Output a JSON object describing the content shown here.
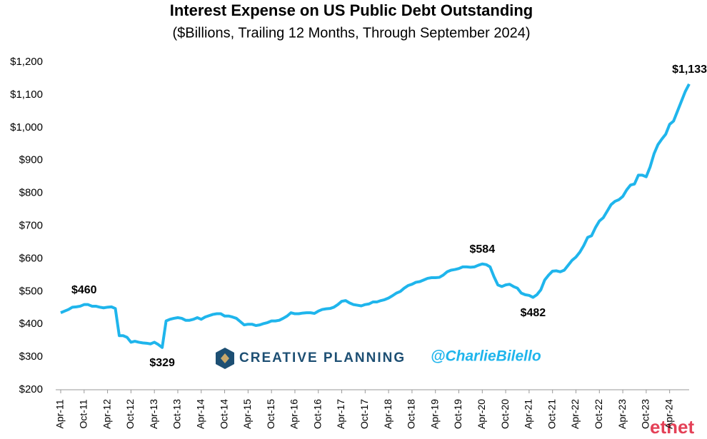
{
  "chart_data": {
    "type": "line",
    "title": "Interest Expense on US Public Debt Outstanding",
    "subtitle": "($Billions, Trailing 12 Months, Through September 2024)",
    "brand": "CREATIVE PLANNING",
    "handle": "@CharlieBilello",
    "watermark": "etnet",
    "categories": [
      "Apr-11",
      null,
      null,
      null,
      null,
      null,
      "Oct-11",
      null,
      null,
      null,
      null,
      null,
      "Apr-12",
      null,
      null,
      null,
      null,
      null,
      "Oct-12",
      null,
      null,
      null,
      null,
      null,
      "Apr-13",
      null,
      null,
      null,
      null,
      null,
      "Oct-13",
      null,
      null,
      null,
      null,
      null,
      "Apr-14",
      null,
      null,
      null,
      null,
      null,
      "Oct-14",
      null,
      null,
      null,
      null,
      null,
      "Apr-15",
      null,
      null,
      null,
      null,
      null,
      "Oct-15",
      null,
      null,
      null,
      null,
      null,
      "Apr-16",
      null,
      null,
      null,
      null,
      null,
      "Oct-16",
      null,
      null,
      null,
      null,
      null,
      "Apr-17",
      null,
      null,
      null,
      null,
      null,
      "Oct-17",
      null,
      null,
      null,
      null,
      null,
      "Apr-18",
      null,
      null,
      null,
      null,
      null,
      "Oct-18",
      null,
      null,
      null,
      null,
      null,
      "Apr-19",
      null,
      null,
      null,
      null,
      null,
      "Oct-19",
      null,
      null,
      null,
      null,
      null,
      "Apr-20",
      null,
      null,
      null,
      null,
      null,
      "Oct-20",
      null,
      null,
      null,
      null,
      null,
      "Apr-21",
      null,
      null,
      null,
      null,
      null,
      "Oct-21",
      null,
      null,
      null,
      null,
      null,
      "Apr-22",
      null,
      null,
      null,
      null,
      null,
      "Oct-22",
      null,
      null,
      null,
      null,
      null,
      "Apr-23",
      null,
      null,
      null,
      null,
      null,
      "Oct-23",
      null,
      null,
      null,
      null,
      null,
      "Apr-24",
      null,
      null,
      null,
      null,
      null
    ],
    "series": [
      {
        "name": "Interest Expense",
        "color": "#1fb5ec",
        "values": [
          435,
          440,
          445,
          452,
          453,
          455,
          460,
          460,
          455,
          455,
          452,
          450,
          452,
          453,
          448,
          365,
          365,
          360,
          345,
          348,
          345,
          343,
          342,
          340,
          345,
          338,
          329,
          410,
          415,
          418,
          420,
          418,
          412,
          412,
          415,
          420,
          415,
          422,
          426,
          430,
          432,
          432,
          425,
          425,
          422,
          418,
          408,
          398,
          400,
          400,
          396,
          398,
          402,
          405,
          410,
          410,
          412,
          418,
          425,
          435,
          432,
          432,
          434,
          435,
          435,
          433,
          440,
          445,
          447,
          448,
          452,
          460,
          470,
          472,
          465,
          460,
          458,
          456,
          460,
          462,
          468,
          468,
          472,
          475,
          480,
          487,
          495,
          500,
          510,
          518,
          522,
          528,
          530,
          535,
          540,
          542,
          542,
          543,
          550,
          560,
          565,
          567,
          570,
          575,
          575,
          574,
          575,
          580,
          584,
          582,
          575,
          545,
          520,
          515,
          520,
          522,
          515,
          510,
          495,
          490,
          488,
          482,
          490,
          505,
          535,
          550,
          562,
          563,
          560,
          565,
          580,
          595,
          605,
          620,
          640,
          665,
          670,
          695,
          715,
          725,
          745,
          765,
          775,
          780,
          790,
          810,
          825,
          828,
          855,
          855,
          850,
          880,
          920,
          948,
          965,
          980,
          1010,
          1020,
          1050,
          1080,
          1110,
          1133
        ],
        "value_labels": [
          null,
          null,
          null,
          null,
          null,
          null,
          "$460",
          null,
          null,
          null,
          null,
          null,
          null,
          null,
          null,
          null,
          null,
          null,
          null,
          null,
          null,
          null,
          null,
          null,
          null,
          null,
          "$329",
          null,
          null,
          null,
          null,
          null,
          null,
          null,
          null,
          null,
          null,
          null,
          null,
          null,
          null,
          null,
          null,
          null,
          null,
          null,
          null,
          null,
          null,
          null,
          null,
          null,
          null,
          null,
          null,
          null,
          null,
          null,
          null,
          null,
          null,
          null,
          null,
          null,
          null,
          null,
          null,
          null,
          null,
          null,
          null,
          null,
          null,
          null,
          null,
          null,
          null,
          null,
          null,
          null,
          null,
          null,
          null,
          null,
          null,
          null,
          null,
          null,
          null,
          null,
          null,
          null,
          null,
          null,
          null,
          null,
          null,
          null,
          null,
          null,
          null,
          null,
          null,
          null,
          null,
          null,
          null,
          null,
          "$584",
          null,
          null,
          null,
          null,
          null,
          null,
          null,
          null,
          null,
          null,
          null,
          null,
          "$482",
          null,
          null,
          null,
          null,
          null,
          null,
          null,
          null,
          null,
          null,
          null,
          null,
          null,
          null,
          null,
          null,
          null,
          null,
          null,
          null,
          null,
          null,
          null,
          null,
          null,
          null,
          null,
          null,
          null,
          null,
          null,
          null,
          null,
          null,
          null,
          null,
          null,
          null,
          null,
          "$1,133"
        ]
      }
    ],
    "ylim": [
      200,
      1200
    ],
    "yticks": [
      {
        "value": 200,
        "label": "$200"
      },
      {
        "value": 300,
        "label": "$300"
      },
      {
        "value": 400,
        "label": "$400"
      },
      {
        "value": 500,
        "label": "$500"
      },
      {
        "value": 600,
        "label": "$600"
      },
      {
        "value": 700,
        "label": "$700"
      },
      {
        "value": 800,
        "label": "$800"
      },
      {
        "value": 900,
        "label": "$900"
      },
      {
        "value": 1000,
        "label": "$1,000"
      },
      {
        "value": 1100,
        "label": "$1,100"
      },
      {
        "value": 1200,
        "label": "$1,200"
      }
    ],
    "grid": false
  }
}
